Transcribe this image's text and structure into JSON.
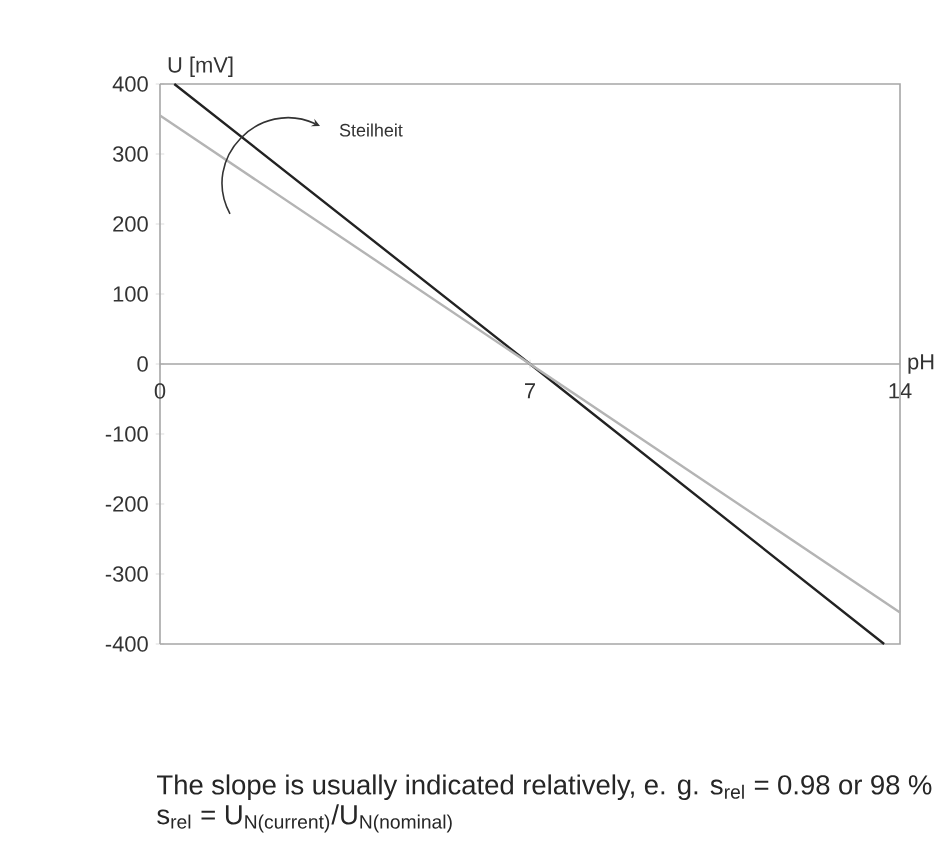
{
  "chart_data": {
    "type": "line",
    "xlabel": "pH",
    "ylabel": "U [mV]",
    "xlim": [
      0,
      14
    ],
    "ylim": [
      -400,
      400
    ],
    "xticks": [
      0,
      7,
      14
    ],
    "yticks": [
      -400,
      -300,
      -200,
      -100,
      0,
      100,
      200,
      300,
      400
    ],
    "marker": "none",
    "series": [
      {
        "color": "#222222",
        "x": [
          0.27,
          7,
          13.7
        ],
        "values": [
          400,
          0,
          -400
        ]
      },
      {
        "color": "#b4b4b4",
        "x": [
          0,
          14
        ],
        "values": [
          355,
          -355
        ]
      }
    ],
    "annotations": [
      "Steilheit",
      "The slope is usually indicated relatively, e. g. s$_{rel}$ = 0.98 or 98 %",
      "s$_{rel}$ = U$_{N(current)}$/U$_{N(nominal)}$"
    ]
  }
}
